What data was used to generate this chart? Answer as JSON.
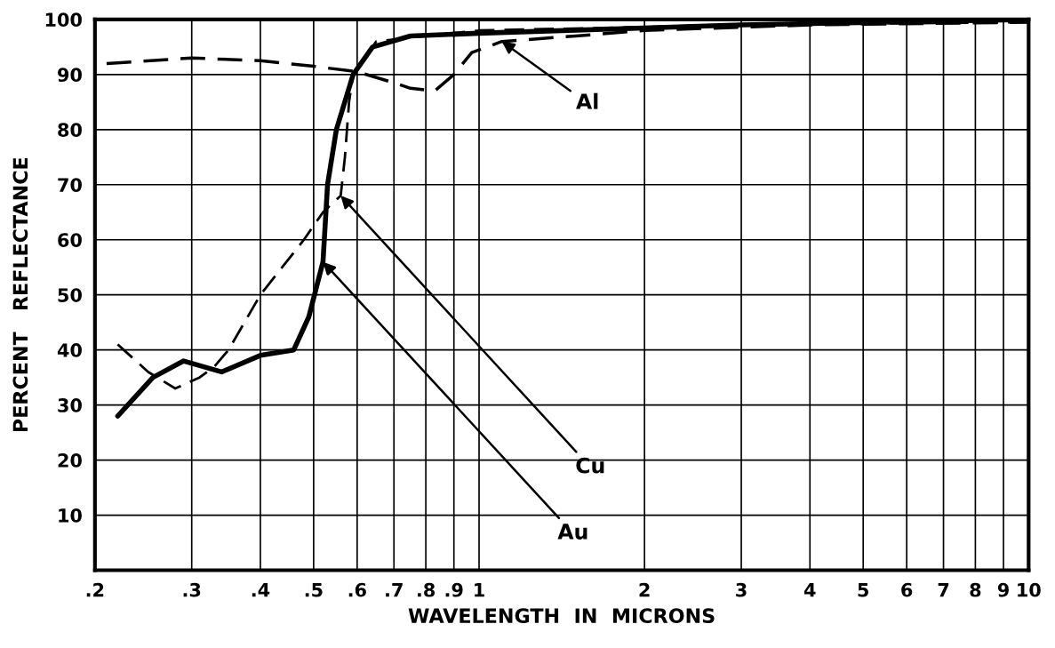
{
  "chart_data": {
    "type": "line",
    "xlabel": "WAVELENGTH  IN  MICRONS",
    "ylabel": "PERCENT   REFLECTANCE",
    "log": "x",
    "xlim": [
      0.2,
      10
    ],
    "ylim": [
      0,
      100
    ],
    "xticks": [
      {
        "value": 0.2,
        "label": ".2"
      },
      {
        "value": 0.3,
        "label": ".3"
      },
      {
        "value": 0.4,
        "label": ".4"
      },
      {
        "value": 0.5,
        "label": ".5"
      },
      {
        "value": 0.6,
        "label": ".6"
      },
      {
        "value": 0.7,
        "label": ".7"
      },
      {
        "value": 0.8,
        "label": ".8"
      },
      {
        "value": 0.9,
        "label": ".9"
      },
      1,
      2,
      3,
      4,
      5,
      6,
      7,
      8,
      9,
      10
    ],
    "yticks": [
      10,
      20,
      30,
      40,
      50,
      60,
      70,
      80,
      90,
      100
    ],
    "grid": true,
    "series": [
      {
        "color": "#000000",
        "line_style": "dashed",
        "x": [
          0.21,
          0.3,
          0.4,
          0.5,
          0.6,
          0.7,
          0.75,
          0.83,
          0.9,
          0.97,
          1.1,
          1.5,
          2,
          4,
          10
        ],
        "values": [
          92,
          93,
          92.5,
          91.5,
          90.5,
          88.5,
          87.5,
          87,
          90,
          94,
          96,
          97,
          98,
          99,
          99.5
        ]
      },
      {
        "color": "#000000",
        "line_style": "dashed",
        "x": [
          0.22,
          0.25,
          0.28,
          0.31,
          0.33,
          0.35,
          0.4,
          0.48,
          0.52,
          0.56,
          0.57,
          0.58,
          0.59,
          0.65,
          0.8,
          1,
          3,
          10
        ],
        "values": [
          41,
          36,
          33,
          35,
          37,
          40,
          50,
          60,
          65,
          68,
          75,
          85,
          90,
          96,
          97,
          98,
          99,
          99.5
        ]
      },
      {
        "color": "#000000",
        "line_style": "solid",
        "x": [
          0.22,
          0.255,
          0.29,
          0.34,
          0.4,
          0.46,
          0.49,
          0.52,
          0.53,
          0.55,
          0.59,
          0.64,
          0.75,
          1,
          3,
          10
        ],
        "values": [
          28,
          35,
          38,
          36,
          39,
          40,
          46,
          56,
          70,
          80,
          90,
          95,
          97,
          97.5,
          99,
          100
        ]
      }
    ],
    "annotations": [
      {
        "text": "Al",
        "x": 1.1,
        "y": 96
      },
      {
        "text": "Cu",
        "x": 0.56,
        "y": 68
      },
      {
        "text": "Au",
        "x": 0.52,
        "y": 56
      }
    ]
  }
}
